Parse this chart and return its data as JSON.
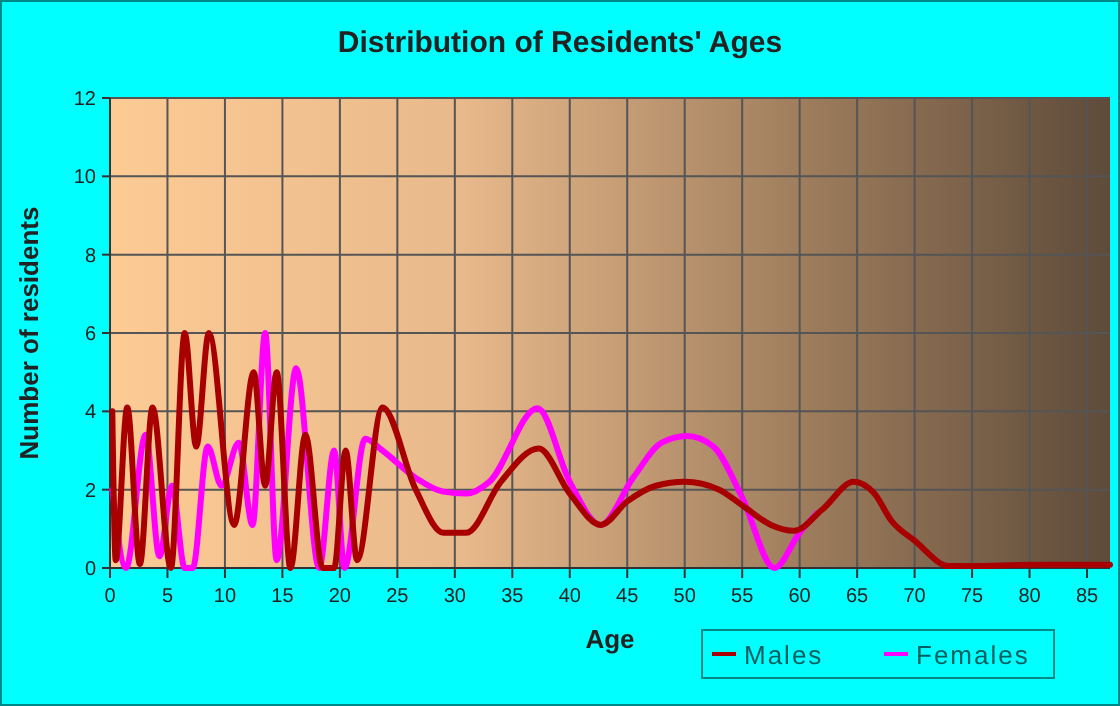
{
  "chart_data": {
    "type": "line",
    "title": "Distribution of Residents' Ages",
    "xlabel": "Age",
    "ylabel": "Number of residents",
    "xlim": [
      0,
      87
    ],
    "xticks": [
      0,
      5,
      10,
      15,
      20,
      25,
      30,
      35,
      40,
      45,
      50,
      55,
      60,
      65,
      70,
      75,
      80,
      85
    ],
    "ylim": [
      0,
      12
    ],
    "yticks": [
      0,
      2,
      4,
      6,
      8,
      10,
      12
    ],
    "grid": true,
    "legend": "bottom right",
    "line_style": "solid",
    "marker": "none",
    "series": [
      {
        "name": "Males",
        "color": "#a80000",
        "x": [
          0.2,
          0.5,
          1.5,
          2.6,
          3.7,
          5.3,
          6.5,
          7.5,
          8.6,
          10.8,
          12.5,
          13.5,
          14.5,
          15.7,
          17,
          18.5,
          19.5,
          20.5,
          21.5,
          23.7,
          26.6,
          29,
          31,
          34,
          37.3,
          40,
          42.7,
          45,
          47.5,
          50,
          53,
          55,
          57.5,
          59.5,
          62,
          64.7,
          66.5,
          68,
          70,
          73,
          75,
          80,
          87
        ],
        "values": [
          4,
          0.2,
          4.1,
          0.1,
          4.1,
          0,
          6,
          3.1,
          6,
          1.1,
          5,
          2.1,
          5,
          0,
          3.4,
          0,
          0,
          3,
          0.2,
          4.1,
          2,
          0.9,
          0.9,
          2.2,
          3.05,
          1.9,
          1.1,
          1.7,
          2.1,
          2.2,
          2,
          1.6,
          1.1,
          0.95,
          1.5,
          2.2,
          1.9,
          1.2,
          0.7,
          0.05,
          0.05,
          0.08,
          0.08
        ]
      },
      {
        "name": "Females",
        "color": "#ff00ff",
        "x": [
          0.2,
          1.4,
          3.1,
          4.3,
          5.4,
          6.5,
          7.2,
          8.5,
          9.7,
          11.2,
          12.4,
          13.5,
          14.5,
          16.2,
          18.2,
          19.5,
          20.4,
          22.2,
          23.7,
          26.6,
          29,
          31,
          33,
          37.2,
          40,
          42.7,
          45.5,
          48,
          50.2,
          52.5,
          55,
          57.8,
          60,
          61.5
        ],
        "values": [
          2,
          0,
          3.4,
          0.3,
          2.1,
          0,
          0,
          3.1,
          2.1,
          3.2,
          1.1,
          6,
          0.2,
          5.1,
          0,
          3,
          0,
          3.3,
          3,
          2.3,
          1.95,
          1.9,
          2.2,
          4.08,
          2.2,
          1.1,
          2.3,
          3.2,
          3.37,
          3.1,
          1.8,
          0,
          0.9,
          1.4
        ]
      }
    ]
  }
}
